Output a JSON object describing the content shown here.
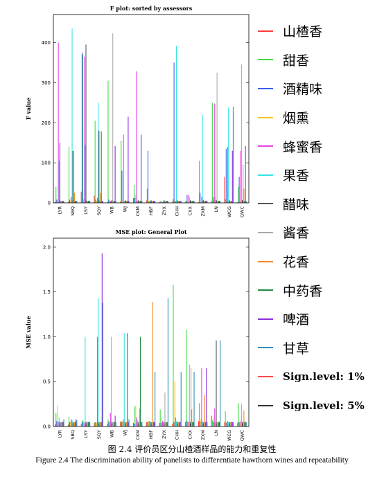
{
  "chart_data": [
    {
      "type": "bar",
      "title": "F plot: sorted by assessors",
      "xlabel": "",
      "ylabel": "F value",
      "ylim": [
        0,
        470
      ],
      "yticks": [
        0,
        100,
        200,
        300,
        400
      ],
      "categories": [
        "LYR",
        "SBQ",
        "LSY",
        "SQY",
        "WB",
        "WJ",
        "CKM",
        "HBF",
        "ZYX",
        "CHH",
        "CXX",
        "ZXM",
        "LN",
        "WCG",
        "QWC"
      ],
      "series": [
        {
          "name": "山楂香",
          "values": [
            3,
            3,
            28,
            18,
            2,
            3,
            12,
            6,
            2,
            3,
            3,
            2,
            5,
            65,
            2
          ]
        },
        {
          "name": "甜香",
          "values": [
            40,
            140,
            370,
            205,
            305,
            155,
            45,
            35,
            5,
            10,
            5,
            105,
            250,
            10,
            40
          ]
        },
        {
          "name": "酒精味",
          "values": [
            8,
            8,
            375,
            8,
            8,
            80,
            12,
            130,
            3,
            350,
            20,
            25,
            15,
            135,
            65
          ]
        },
        {
          "name": "烟熏",
          "values": [
            5,
            5,
            10,
            5,
            5,
            3,
            20,
            5,
            2,
            5,
            3,
            3,
            8,
            5,
            5
          ]
        },
        {
          "name": "蜂蜜香",
          "values": [
            400,
            15,
            365,
            12,
            5,
            170,
            328,
            5,
            2,
            5,
            20,
            15,
            248,
            140,
            130
          ]
        },
        {
          "name": "果香",
          "values": [
            105,
            435,
            145,
            250,
            5,
            5,
            5,
            5,
            5,
            392,
            15,
            220,
            15,
            238,
            345
          ]
        },
        {
          "name": "醋味",
          "values": [
            150,
            130,
            395,
            180,
            5,
            5,
            5,
            5,
            5,
            5,
            5,
            5,
            5,
            5,
            5
          ]
        },
        {
          "name": "酱香",
          "values": [
            5,
            130,
            5,
            5,
            423,
            5,
            5,
            5,
            5,
            5,
            5,
            5,
            325,
            5,
            95
          ]
        },
        {
          "name": "花香",
          "values": [
            5,
            25,
            5,
            25,
            5,
            5,
            5,
            5,
            5,
            5,
            5,
            5,
            5,
            5,
            35
          ]
        },
        {
          "name": "中药香",
          "values": [
            5,
            5,
            5,
            178,
            5,
            5,
            5,
            5,
            5,
            5,
            5,
            5,
            5,
            5,
            5
          ]
        },
        {
          "name": "啤酒",
          "values": [
            5,
            5,
            5,
            5,
            142,
            215,
            170,
            5,
            5,
            5,
            5,
            5,
            5,
            130,
            142
          ]
        },
        {
          "name": "甘草",
          "values": [
            5,
            5,
            5,
            5,
            5,
            5,
            5,
            5,
            5,
            5,
            5,
            5,
            5,
            240,
            5
          ]
        }
      ]
    },
    {
      "type": "bar",
      "title": "MSE plot: General Plot",
      "xlabel": "",
      "ylabel": "MSE value",
      "ylim": [
        0,
        2.1
      ],
      "yticks": [
        0.0,
        0.5,
        1.0,
        1.5,
        2.0
      ],
      "categories": [
        "LYR",
        "SBQ",
        "LSY",
        "SQY",
        "WB",
        "WJ",
        "CKM",
        "HBF",
        "ZYX",
        "CHH",
        "CXX",
        "ZXM",
        "LN",
        "WCG",
        "QWC"
      ],
      "series": [
        {
          "name": "山楂香",
          "values": [
            0.03,
            0.02,
            0.03,
            0.04,
            0.03,
            0.05,
            0.04,
            0.05,
            0.04,
            0.03,
            0.05,
            0.06,
            0.12,
            0.05,
            0.04
          ]
        },
        {
          "name": "甜香",
          "values": [
            0.15,
            0.11,
            0.07,
            0.05,
            0.08,
            0.06,
            0.22,
            0.05,
            0.19,
            1.58,
            1.08,
            0.26,
            0.07,
            0.17,
            0.26
          ]
        },
        {
          "name": "酒精味",
          "values": [
            0.06,
            0.05,
            0.05,
            0.05,
            0.05,
            0.05,
            0.03,
            0.05,
            0.04,
            0.05,
            0.06,
            0.05,
            0.05,
            0.04,
            0.05
          ]
        },
        {
          "name": "烟熏",
          "values": [
            0.23,
            0.05,
            0.06,
            0.04,
            0.06,
            0.06,
            0.23,
            0.06,
            0.1,
            0.5,
            0.05,
            0.08,
            0.1,
            0.05,
            0.04
          ]
        },
        {
          "name": "蜂蜜香",
          "values": [
            0.05,
            0.08,
            0.04,
            1.0,
            0.15,
            0.08,
            0.1,
            0.06,
            0.06,
            0.1,
            0.05,
            0.65,
            0.2,
            0.06,
            0.06
          ]
        },
        {
          "name": "果香",
          "values": [
            0.1,
            0.07,
            1.0,
            1.43,
            1.0,
            1.04,
            0.07,
            0.05,
            0.05,
            0.06,
            0.69,
            0.05,
            0.05,
            0.05,
            0.25
          ]
        },
        {
          "name": "醋味",
          "values": [
            0.05,
            0.05,
            0.05,
            0.05,
            0.05,
            0.05,
            0.05,
            0.05,
            0.05,
            0.05,
            0.05,
            0.05,
            0.96,
            0.05,
            0.05
          ]
        },
        {
          "name": "酱香",
          "values": [
            0.05,
            0.05,
            0.05,
            0.05,
            0.05,
            0.05,
            0.05,
            0.05,
            0.38,
            0.05,
            0.65,
            0.05,
            0.05,
            0.05,
            0.05
          ]
        },
        {
          "name": "花香",
          "values": [
            0.05,
            0.05,
            0.05,
            0.05,
            0.05,
            0.05,
            0.2,
            1.39,
            0.05,
            0.05,
            0.19,
            0.35,
            0.05,
            0.05,
            0.18
          ]
        },
        {
          "name": "中药香",
          "values": [
            0.05,
            0.05,
            0.05,
            0.05,
            0.05,
            1.04,
            1.0,
            0.05,
            0.05,
            0.05,
            0.05,
            0.05,
            0.05,
            0.05,
            0.05
          ]
        },
        {
          "name": "啤酒",
          "values": [
            0.05,
            0.08,
            0.05,
            1.93,
            0.12,
            0.05,
            0.05,
            0.05,
            0.05,
            0.05,
            0.05,
            0.65,
            0.05,
            0.05,
            0.05
          ]
        },
        {
          "name": "甘草",
          "values": [
            0.08,
            0.07,
            0.05,
            1.38,
            0.05,
            0.08,
            0.05,
            0.61,
            1.43,
            0.61,
            0.61,
            0.05,
            0.96,
            0.05,
            0.05
          ]
        }
      ]
    }
  ],
  "legend": [
    {
      "label": "山楂香",
      "color": "#ff3b3b"
    },
    {
      "label": "甜香",
      "color": "#3ddc3d"
    },
    {
      "label": "酒精味",
      "color": "#3d5cf0"
    },
    {
      "label": "烟熏",
      "color": "#f5c518"
    },
    {
      "label": "蜂蜜香",
      "color": "#e83ee8"
    },
    {
      "label": "果香",
      "color": "#35e3e3"
    },
    {
      "label": "醋味",
      "color": "#555555"
    },
    {
      "label": "酱香",
      "color": "#aaaaaa"
    },
    {
      "label": "花香",
      "color": "#f58a1f"
    },
    {
      "label": "中药香",
      "color": "#1e8a3c"
    },
    {
      "label": "啤酒",
      "color": "#8a2be2"
    },
    {
      "label": "甘草",
      "color": "#2a8fb5"
    },
    {
      "label": "Sign.level: 1%",
      "color": "#ff4b4b",
      "sig": true
    },
    {
      "label": "Sign.level: 5%",
      "color": "#333333",
      "sig": true
    }
  ],
  "caption": {
    "cn": "图 2.4  评价员区分山楂酒样品的能力和重复性",
    "en": "Figure 2.4 The discrimination ability of panelists to differentiate hawthorn wines and repeatability"
  }
}
